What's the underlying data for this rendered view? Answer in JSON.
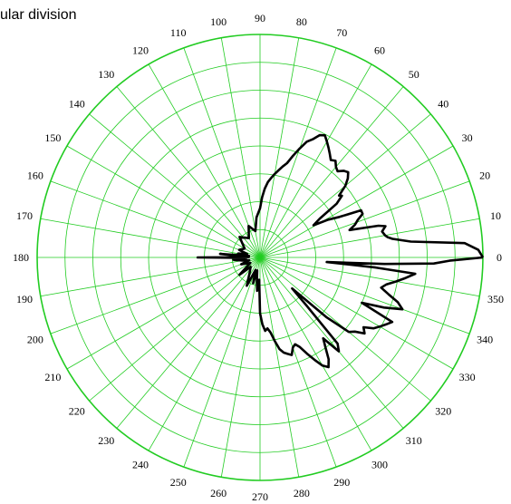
{
  "chart_data": {
    "type": "line",
    "subtype": "polar",
    "title": "ular division",
    "grid": true,
    "grid_color": "#22cc22",
    "line_color": "#000000",
    "radial_range": [
      0,
      1
    ],
    "radial_rings": 8,
    "angle_labels": [
      "0",
      "10",
      "20",
      "30",
      "40",
      "50",
      "60",
      "70",
      "80",
      "90",
      "100",
      "110",
      "120",
      "130",
      "140",
      "150",
      "160",
      "170",
      "180",
      "190",
      "200",
      "210",
      "220",
      "230",
      "240",
      "250",
      "260",
      "270",
      "280",
      "290",
      "300",
      "310",
      "320",
      "330",
      "340",
      "350"
    ],
    "series": [
      {
        "theta": [
          0,
          2,
          4,
          6,
          8,
          9,
          10,
          12,
          14,
          15,
          17,
          19,
          20,
          21,
          23,
          25,
          27,
          29,
          31,
          33,
          35,
          37,
          38,
          40,
          42,
          44,
          46,
          48,
          50,
          52,
          54,
          56,
          58,
          60,
          62,
          64,
          66,
          68,
          70,
          72,
          74,
          76,
          78,
          80,
          82,
          84,
          86,
          88,
          90,
          95,
          100,
          110,
          120,
          135,
          150,
          160,
          165,
          170,
          172,
          175,
          178,
          180,
          182,
          185,
          190,
          195,
          200,
          210,
          220,
          225,
          235,
          245,
          250,
          255,
          258,
          262,
          265,
          268,
          270,
          272,
          274,
          276,
          278,
          280,
          282,
          284,
          286,
          288,
          290,
          292,
          294,
          296,
          298,
          300,
          302,
          304,
          306,
          308,
          310,
          312,
          314,
          316,
          318,
          320,
          322,
          324,
          326,
          328,
          330,
          332,
          334,
          336,
          338,
          340,
          342,
          344,
          346,
          348,
          350,
          352,
          354,
          355,
          356,
          357,
          358,
          359,
          360
        ],
        "r": [
          1.0,
          0.98,
          0.92,
          0.68,
          0.6,
          0.58,
          0.57,
          0.56,
          0.58,
          0.55,
          0.42,
          0.45,
          0.46,
          0.47,
          0.5,
          0.5,
          0.4,
          0.35,
          0.28,
          0.32,
          0.42,
          0.46,
          0.45,
          0.5,
          0.53,
          0.55,
          0.54,
          0.52,
          0.53,
          0.55,
          0.54,
          0.56,
          0.58,
          0.6,
          0.62,
          0.61,
          0.58,
          0.56,
          0.52,
          0.48,
          0.44,
          0.42,
          0.4,
          0.38,
          0.36,
          0.34,
          0.31,
          0.27,
          0.22,
          0.18,
          0.12,
          0.15,
          0.1,
          0.13,
          0.08,
          0.1,
          0.06,
          0.1,
          0.05,
          0.18,
          0.05,
          0.28,
          0.06,
          0.12,
          0.08,
          0.05,
          0.09,
          0.05,
          0.12,
          0.06,
          0.08,
          0.14,
          0.06,
          0.12,
          0.06,
          0.1,
          0.15,
          0.1,
          0.25,
          0.3,
          0.33,
          0.32,
          0.34,
          0.38,
          0.42,
          0.44,
          0.45,
          0.46,
          0.43,
          0.42,
          0.44,
          0.48,
          0.52,
          0.56,
          0.58,
          0.55,
          0.5,
          0.46,
          0.55,
          0.52,
          0.3,
          0.2,
          0.4,
          0.52,
          0.54,
          0.58,
          0.56,
          0.6,
          0.62,
          0.64,
          0.66,
          0.5,
          0.6,
          0.68,
          0.65,
          0.6,
          0.56,
          0.58,
          0.62,
          0.66,
          0.7,
          0.52,
          0.3,
          0.56,
          0.78,
          0.85,
          1.0
        ]
      }
    ]
  }
}
